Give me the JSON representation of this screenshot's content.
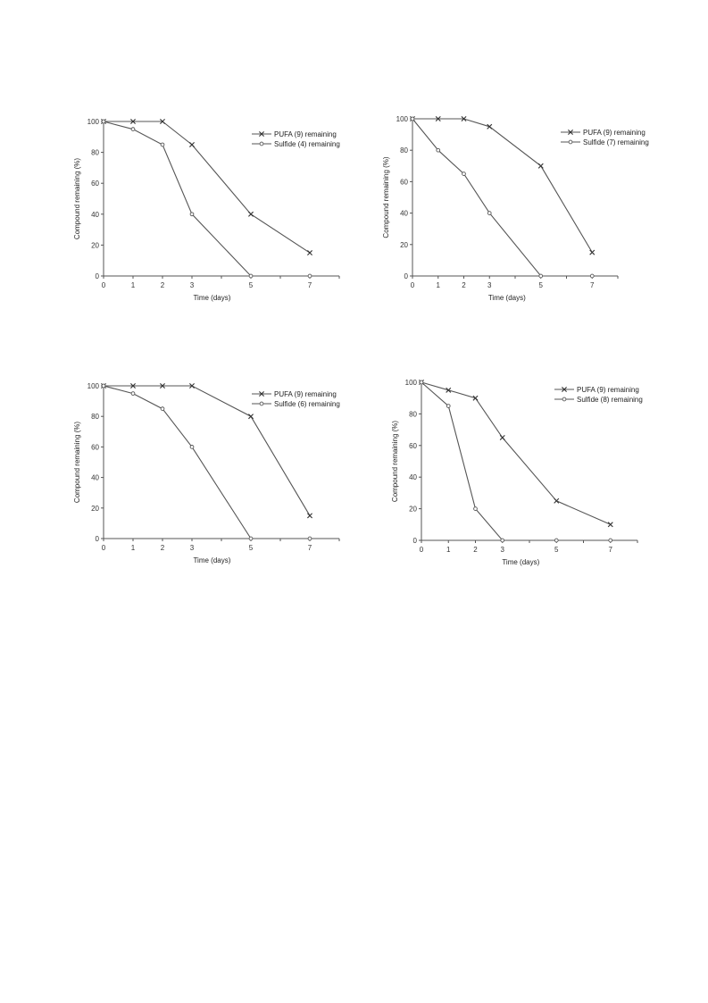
{
  "chart_data": [
    {
      "type": "line",
      "title": "",
      "xlabel": "Time (days)",
      "ylabel": "Compound remaining (%)",
      "xlim": [
        0,
        8
      ],
      "ylim": [
        0,
        100
      ],
      "xticks": [
        0,
        1,
        2,
        3,
        5,
        7
      ],
      "yticks": [
        0,
        20,
        40,
        60,
        80,
        100
      ],
      "legend_position": "top-right",
      "grid": false,
      "series": [
        {
          "name": "PUFA (9) remaining",
          "marker": "x",
          "x": [
            0,
            1,
            2,
            3,
            5,
            7
          ],
          "y": [
            100,
            100,
            100,
            85,
            40,
            15
          ]
        },
        {
          "name": "Sulfide (4) remaining",
          "marker": "o",
          "x": [
            0,
            1,
            2,
            3,
            5,
            7
          ],
          "y": [
            100,
            95,
            85,
            40,
            0,
            0
          ]
        }
      ]
    },
    {
      "type": "line",
      "title": "",
      "xlabel": "Time (days)",
      "ylabel": "Compound remaining (%)",
      "xlim": [
        0,
        8
      ],
      "ylim": [
        0,
        100
      ],
      "xticks": [
        0,
        1,
        2,
        3,
        5,
        7
      ],
      "yticks": [
        0,
        20,
        40,
        60,
        80,
        100
      ],
      "legend_position": "top-right",
      "grid": false,
      "series": [
        {
          "name": "PUFA (9) remaining",
          "marker": "x",
          "x": [
            0,
            1,
            2,
            3,
            5,
            7
          ],
          "y": [
            100,
            100,
            100,
            95,
            70,
            15
          ]
        },
        {
          "name": "Sulfide (7) remaining",
          "marker": "o",
          "x": [
            0,
            1,
            2,
            3,
            5,
            7
          ],
          "y": [
            100,
            80,
            65,
            40,
            0,
            0
          ]
        }
      ]
    },
    {
      "type": "line",
      "title": "",
      "xlabel": "Time (days)",
      "ylabel": "Compound remaining (%)",
      "xlim": [
        0,
        8
      ],
      "ylim": [
        0,
        100
      ],
      "xticks": [
        0,
        1,
        2,
        3,
        5,
        7
      ],
      "yticks": [
        0,
        20,
        40,
        60,
        80,
        100
      ],
      "legend_position": "top-right",
      "grid": false,
      "series": [
        {
          "name": "PUFA (9) remaining",
          "marker": "x",
          "x": [
            0,
            1,
            2,
            3,
            5,
            7
          ],
          "y": [
            100,
            100,
            100,
            100,
            80,
            15
          ]
        },
        {
          "name": "Sulfide (6) remaining",
          "marker": "o",
          "x": [
            0,
            1,
            2,
            3,
            5,
            7
          ],
          "y": [
            100,
            95,
            85,
            60,
            0,
            0
          ]
        }
      ]
    },
    {
      "type": "line",
      "title": "",
      "xlabel": "Time (days)",
      "ylabel": "Compound remaining (%)",
      "xlim": [
        0,
        8
      ],
      "ylim": [
        0,
        100
      ],
      "xticks": [
        0,
        1,
        2,
        3,
        5,
        7
      ],
      "yticks": [
        0,
        20,
        40,
        60,
        80,
        100
      ],
      "legend_position": "top-right",
      "grid": false,
      "series": [
        {
          "name": "PUFA (9) remaining",
          "marker": "x",
          "x": [
            0,
            1,
            2,
            3,
            5,
            7
          ],
          "y": [
            100,
            95,
            90,
            65,
            25,
            10
          ]
        },
        {
          "name": "Sulfide (8) remaining",
          "marker": "o",
          "x": [
            0,
            1,
            2,
            3,
            5,
            7
          ],
          "y": [
            100,
            85,
            20,
            0,
            0,
            0
          ]
        }
      ]
    }
  ]
}
